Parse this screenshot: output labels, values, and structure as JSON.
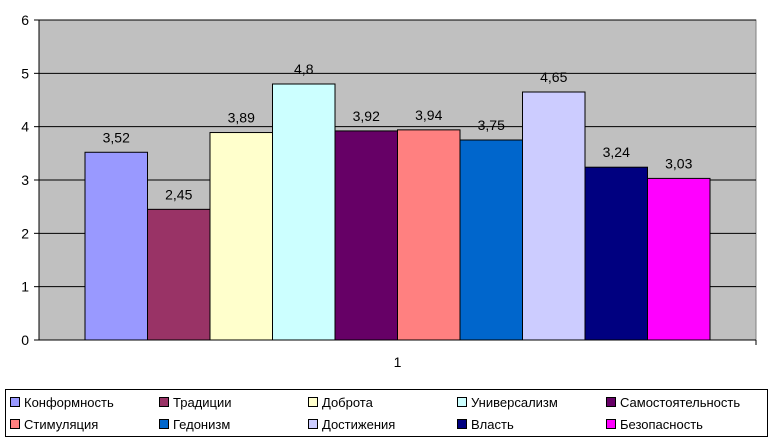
{
  "chart_data": {
    "type": "bar",
    "categories": [
      "1"
    ],
    "series": [
      {
        "name": "Конформность",
        "values": [
          3.52
        ],
        "label": "3,52",
        "color": "#9999FF"
      },
      {
        "name": "Традиции",
        "values": [
          2.45
        ],
        "label": "2,45",
        "color": "#993366"
      },
      {
        "name": "Доброта",
        "values": [
          3.89
        ],
        "label": "3,89",
        "color": "#FFFFCC"
      },
      {
        "name": "Универсализм",
        "values": [
          4.8
        ],
        "label": "4,8",
        "color": "#CCFFFF"
      },
      {
        "name": "Самостоятельность",
        "values": [
          3.92
        ],
        "label": "3,92",
        "color": "#660066"
      },
      {
        "name": "Стимуляция",
        "values": [
          3.94
        ],
        "label": "3,94",
        "color": "#FF8080"
      },
      {
        "name": "Гедонизм",
        "values": [
          3.75
        ],
        "label": "3,75",
        "color": "#0066CC"
      },
      {
        "name": "Достижения",
        "values": [
          4.65
        ],
        "label": "4,65",
        "color": "#CCCCFF"
      },
      {
        "name": "Власть",
        "values": [
          3.24
        ],
        "label": "3,24",
        "color": "#000080"
      },
      {
        "name": "Безопасность",
        "values": [
          3.03
        ],
        "label": "3,03",
        "color": "#FF00FF"
      }
    ],
    "ylim": [
      0,
      6
    ],
    "yticks": [
      "0",
      "1",
      "2",
      "3",
      "4",
      "5",
      "6"
    ],
    "grid": true,
    "plot_background": "#C0C0C0",
    "legend_position": "bottom"
  }
}
